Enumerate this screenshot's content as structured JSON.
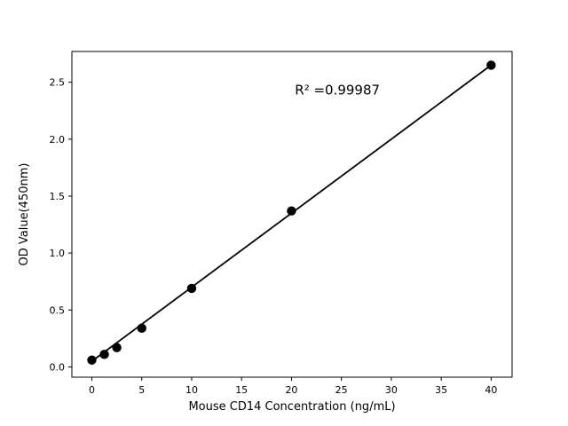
{
  "chart_data": {
    "type": "scatter",
    "title": "",
    "xlabel": "Mouse CD14 Concentration (ng/mL)",
    "ylabel": "OD Value(450nm)",
    "annotation": "R² =0.99987",
    "annotation_pos": {
      "x": 24.6,
      "y": 2.43
    },
    "series": [
      {
        "name": "standard-curve-points",
        "x": [
          0,
          1.25,
          2.5,
          5,
          10,
          20,
          40
        ],
        "y": [
          0.06,
          0.11,
          0.17,
          0.34,
          0.69,
          1.37,
          2.65
        ]
      }
    ],
    "fit_line": {
      "x0": 0,
      "y0": 0.05,
      "x1": 40,
      "y1": 2.65
    },
    "xticks": [
      {
        "value": 0,
        "label": "0"
      },
      {
        "value": 5,
        "label": "5"
      },
      {
        "value": 10,
        "label": "10"
      },
      {
        "value": 15,
        "label": "15"
      },
      {
        "value": 20,
        "label": "20"
      },
      {
        "value": 25,
        "label": "25"
      },
      {
        "value": 30,
        "label": "30"
      },
      {
        "value": 35,
        "label": "35"
      },
      {
        "value": 40,
        "label": "40"
      }
    ],
    "yticks": [
      {
        "value": 0.0,
        "label": "0.0"
      },
      {
        "value": 0.5,
        "label": "0.5"
      },
      {
        "value": 1.0,
        "label": "1.0"
      },
      {
        "value": 1.5,
        "label": "1.5"
      },
      {
        "value": 2.0,
        "label": "2.0"
      },
      {
        "value": 2.5,
        "label": "2.5"
      }
    ],
    "xlim": [
      -2.0,
      42.1
    ],
    "ylim": [
      -0.09,
      2.77
    ],
    "grid": false,
    "legend": null,
    "colors": {
      "line": "#000000",
      "marker": "#000000",
      "text": "#000000",
      "background": "#ffffff"
    }
  }
}
